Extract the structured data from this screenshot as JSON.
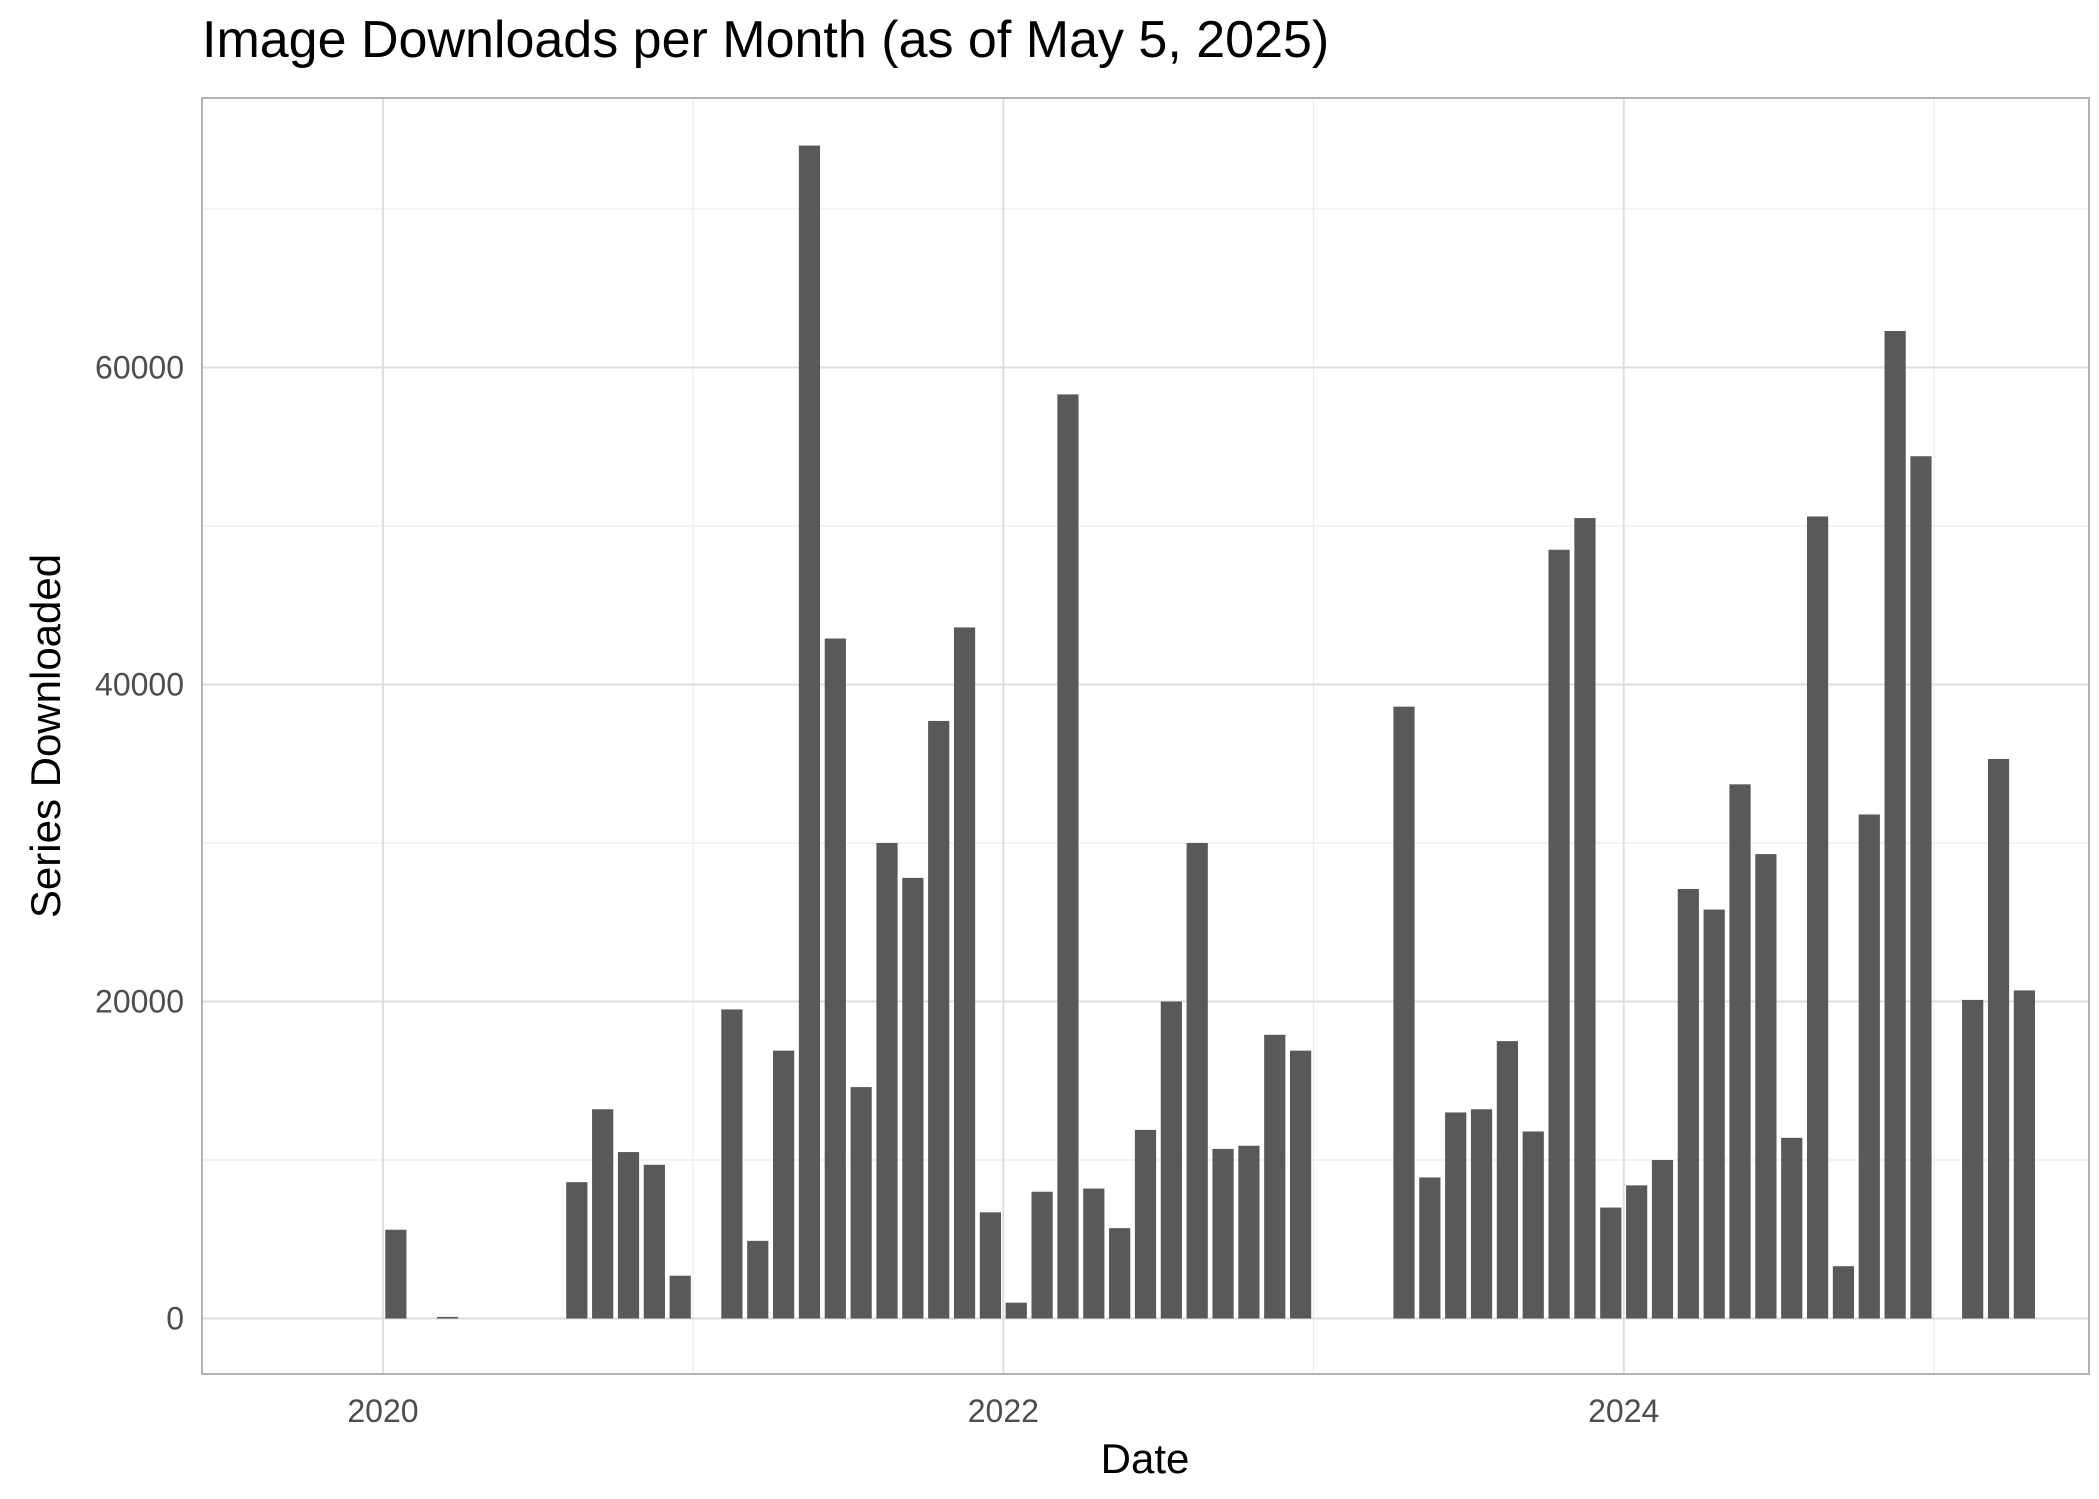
{
  "chart_data": {
    "type": "bar",
    "title": "Image Downloads per Month (as of May 5, 2025)",
    "xlabel": "Date",
    "ylabel": "Series Downloaded",
    "x_axis_type": "date",
    "x_ticks": [
      "2020",
      "2022",
      "2024"
    ],
    "y_ticks": [
      0,
      20000,
      40000,
      60000
    ],
    "xlim": [
      "2019-06",
      "2025-07"
    ],
    "ylim": [
      -3500,
      77000
    ],
    "grid": true,
    "legend": "none",
    "bar_color": "#595959",
    "x": [
      "2020-01",
      "2020-03",
      "2020-08",
      "2020-09",
      "2020-10",
      "2020-11",
      "2020-12",
      "2021-02",
      "2021-03",
      "2021-04",
      "2021-05",
      "2021-06",
      "2021-07",
      "2021-08",
      "2021-09",
      "2021-10",
      "2021-11",
      "2021-12",
      "2022-01",
      "2022-02",
      "2022-03",
      "2022-04",
      "2022-05",
      "2022-06",
      "2022-07",
      "2022-08",
      "2022-09",
      "2022-10",
      "2022-11",
      "2022-12",
      "2023-04",
      "2023-05",
      "2023-06",
      "2023-07",
      "2023-08",
      "2023-09",
      "2023-10",
      "2023-11",
      "2023-12",
      "2024-01",
      "2024-02",
      "2024-03",
      "2024-04",
      "2024-05",
      "2024-06",
      "2024-07",
      "2024-08",
      "2024-09",
      "2024-10",
      "2024-11",
      "2024-12",
      "2025-02",
      "2025-03",
      "2025-04"
    ],
    "values": [
      5600,
      100,
      8600,
      13200,
      10500,
      9700,
      2700,
      19500,
      4900,
      16900,
      74000,
      42900,
      14600,
      30000,
      27800,
      37700,
      43600,
      6700,
      1000,
      8000,
      58300,
      8200,
      5700,
      11900,
      20000,
      30000,
      10700,
      10900,
      17900,
      16900,
      38600,
      8900,
      13000,
      13200,
      17500,
      11800,
      48500,
      50500,
      7000,
      8400,
      10000,
      27100,
      25800,
      33700,
      29300,
      11400,
      50600,
      3300,
      31800,
      62300,
      54400,
      20100,
      35300,
      20700
    ]
  }
}
